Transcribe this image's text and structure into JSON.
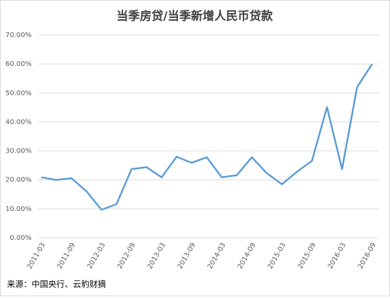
{
  "chart_data": {
    "type": "line",
    "title": "当季房贷/当季新增人民币贷款",
    "categories": [
      "2011-03",
      null,
      "2011-09",
      null,
      "2012-03",
      null,
      "2012-09",
      null,
      "2013-03",
      null,
      "2013-09",
      null,
      "2014-03",
      null,
      "2014-09",
      null,
      "2015-03",
      null,
      "2015-09",
      null,
      "2016-03",
      null,
      "2016-09"
    ],
    "series": [
      {
        "name": "当季房贷/当季新增人民币贷款",
        "color": "#5b9bd5",
        "values": [
          20.9,
          20.0,
          20.6,
          16.1,
          9.7,
          11.6,
          23.7,
          24.4,
          20.9,
          28.0,
          25.9,
          27.8,
          20.9,
          21.6,
          27.8,
          22.3,
          18.5,
          22.8,
          26.6,
          45.1,
          23.7,
          52.0,
          60.0
        ]
      }
    ],
    "ylim": [
      0,
      70
    ],
    "yticks": [
      {
        "value": 0,
        "label": "0.00%"
      },
      {
        "value": 10,
        "label": "10.00%"
      },
      {
        "value": 20,
        "label": "20.00%"
      },
      {
        "value": 30,
        "label": "30.00%"
      },
      {
        "value": 40,
        "label": "40.00%"
      },
      {
        "value": 50,
        "label": "50.00%"
      },
      {
        "value": 60,
        "label": "60.00%"
      },
      {
        "value": 70,
        "label": "70.00%"
      }
    ],
    "grid": true,
    "source": "来源：中国央行、云豹财摘"
  }
}
